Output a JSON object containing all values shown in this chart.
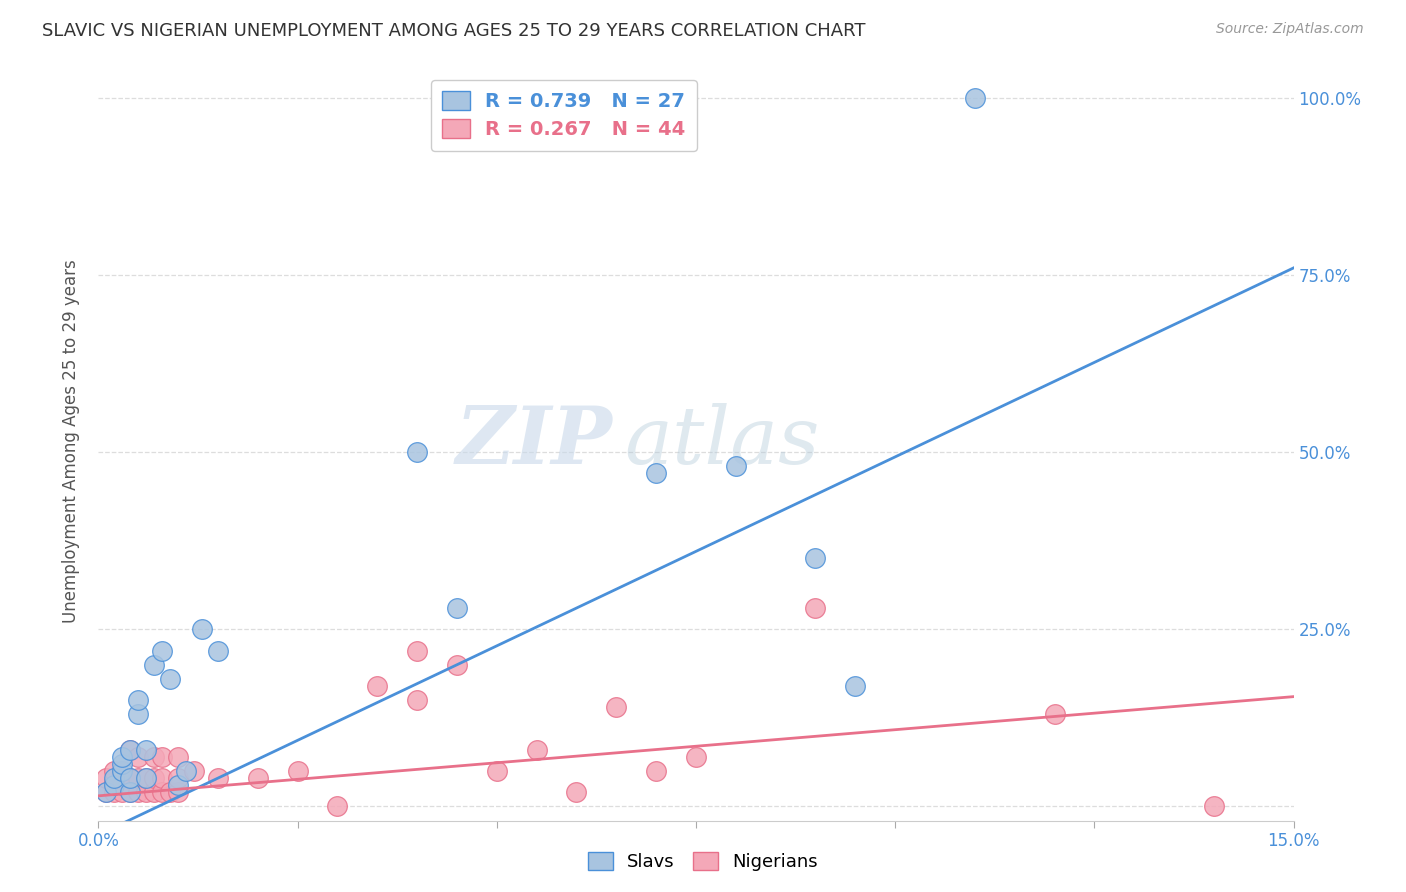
{
  "title": "SLAVIC VS NIGERIAN UNEMPLOYMENT AMONG AGES 25 TO 29 YEARS CORRELATION CHART",
  "source": "Source: ZipAtlas.com",
  "ylabel": "Unemployment Among Ages 25 to 29 years",
  "xlim": [
    0.0,
    0.15
  ],
  "ylim": [
    -0.02,
    1.05
  ],
  "x_ticks": [
    0.0,
    0.025,
    0.05,
    0.075,
    0.1,
    0.125,
    0.15
  ],
  "x_tick_labels": [
    "0.0%",
    "",
    "",
    "",
    "",
    "",
    "15.0%"
  ],
  "y_ticks": [
    0.0,
    0.25,
    0.5,
    0.75,
    1.0
  ],
  "y_tick_labels_right": [
    "",
    "25.0%",
    "50.0%",
    "75.0%",
    "100.0%"
  ],
  "slavs_color": "#a8c4e0",
  "nigerians_color": "#f4a8b8",
  "slavs_line_color": "#4a90d9",
  "nigerians_line_color": "#e8708a",
  "slavs_R": 0.739,
  "slavs_N": 27,
  "nigerians_R": 0.267,
  "nigerians_N": 44,
  "watermark_zip": "ZIP",
  "watermark_atlas": "atlas",
  "background_color": "#ffffff",
  "grid_color": "#dddddd",
  "slavs_x": [
    0.001,
    0.002,
    0.002,
    0.003,
    0.003,
    0.003,
    0.004,
    0.004,
    0.004,
    0.005,
    0.005,
    0.006,
    0.006,
    0.007,
    0.008,
    0.009,
    0.01,
    0.011,
    0.013,
    0.015,
    0.04,
    0.045,
    0.07,
    0.08,
    0.09,
    0.095,
    0.11
  ],
  "slavs_y": [
    0.02,
    0.03,
    0.04,
    0.05,
    0.06,
    0.07,
    0.02,
    0.04,
    0.08,
    0.13,
    0.15,
    0.04,
    0.08,
    0.2,
    0.22,
    0.18,
    0.03,
    0.05,
    0.25,
    0.22,
    0.5,
    0.28,
    0.47,
    0.48,
    0.35,
    0.17,
    1.0
  ],
  "nigerians_x": [
    0.001,
    0.001,
    0.002,
    0.002,
    0.002,
    0.003,
    0.003,
    0.003,
    0.004,
    0.004,
    0.004,
    0.005,
    0.005,
    0.005,
    0.006,
    0.006,
    0.007,
    0.007,
    0.007,
    0.008,
    0.008,
    0.008,
    0.009,
    0.01,
    0.01,
    0.01,
    0.012,
    0.015,
    0.02,
    0.025,
    0.03,
    0.035,
    0.04,
    0.04,
    0.045,
    0.05,
    0.055,
    0.06,
    0.065,
    0.07,
    0.075,
    0.09,
    0.12,
    0.14
  ],
  "nigerians_y": [
    0.02,
    0.04,
    0.02,
    0.035,
    0.05,
    0.02,
    0.03,
    0.05,
    0.02,
    0.04,
    0.08,
    0.02,
    0.04,
    0.07,
    0.02,
    0.04,
    0.02,
    0.04,
    0.07,
    0.02,
    0.04,
    0.07,
    0.02,
    0.02,
    0.04,
    0.07,
    0.05,
    0.04,
    0.04,
    0.05,
    0.0,
    0.17,
    0.15,
    0.22,
    0.2,
    0.05,
    0.08,
    0.02,
    0.14,
    0.05,
    0.07,
    0.28,
    0.13,
    0.0
  ],
  "slavs_line_x0": 0.0,
  "slavs_line_y0": -0.04,
  "slavs_line_x1": 0.15,
  "slavs_line_y1": 0.76,
  "nigerians_line_x0": 0.0,
  "nigerians_line_y0": 0.015,
  "nigerians_line_x1": 0.15,
  "nigerians_line_y1": 0.155
}
